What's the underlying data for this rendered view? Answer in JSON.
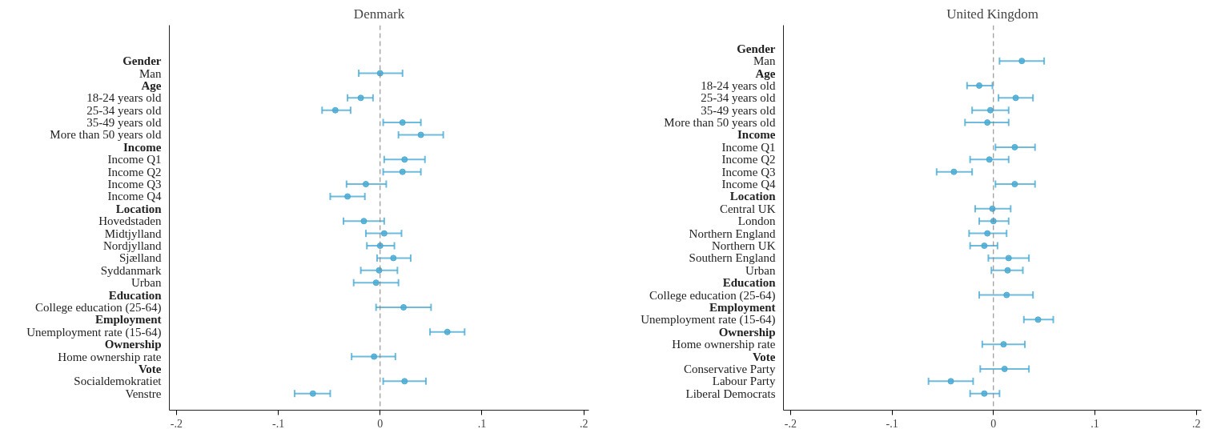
{
  "chart_data": [
    {
      "type": "scatter",
      "orientation": "horizontal",
      "title": "Denmark",
      "color": "#4aaad4",
      "marker": "circle",
      "grid": false,
      "categories": [
        "Gender",
        "Man",
        "Age",
        "18-24 years old",
        "25-34 years old",
        "35-49 years old",
        "More than 50 years old",
        "Income",
        "Income Q1",
        "Income Q2",
        "Income Q3",
        "Income Q4",
        "Location",
        "Hovedstaden",
        "Midtjylland",
        "Nordjylland",
        "Sjælland",
        "Syddanmark",
        "Urban",
        "Education",
        "College education (25-64)",
        "Employment",
        "Unemployment rate (15-64)",
        "Ownership",
        "Home ownership rate",
        "Vote",
        "Socialdemokratiet",
        "Venstre"
      ],
      "values": [
        null,
        0.0,
        null,
        -0.019,
        -0.044,
        0.022,
        0.04,
        null,
        0.024,
        0.022,
        -0.014,
        -0.032,
        null,
        -0.016,
        0.004,
        0.0,
        0.013,
        -0.001,
        -0.004,
        null,
        0.023,
        null,
        0.066,
        null,
        -0.006,
        null,
        0.024,
        -0.066
      ],
      "errors": [
        null,
        [
          -0.021,
          0.022
        ],
        null,
        [
          -0.032,
          -0.007
        ],
        [
          -0.057,
          -0.029
        ],
        [
          0.003,
          0.04
        ],
        [
          0.018,
          0.062
        ],
        null,
        [
          0.004,
          0.044
        ],
        [
          0.003,
          0.04
        ],
        [
          -0.033,
          0.006
        ],
        [
          -0.049,
          -0.015
        ],
        null,
        [
          -0.036,
          0.004
        ],
        [
          -0.014,
          0.021
        ],
        [
          -0.013,
          0.014
        ],
        [
          -0.003,
          0.03
        ],
        [
          -0.019,
          0.017
        ],
        [
          -0.026,
          0.018
        ],
        null,
        [
          -0.004,
          0.05
        ],
        null,
        [
          0.049,
          0.083
        ],
        null,
        [
          -0.028,
          0.015
        ],
        null,
        [
          0.003,
          0.045
        ],
        [
          -0.084,
          -0.049
        ]
      ],
      "xlim": [
        -0.207,
        0.205
      ],
      "xticks": [
        {
          "value": -0.2,
          "label": "-.2"
        },
        {
          "value": -0.1,
          "label": "-.1"
        },
        0,
        {
          "value": 0.1,
          "label": ".1"
        },
        {
          "value": 0.2,
          "label": ".2"
        }
      ],
      "ref_lines": [
        {
          "axis": "x",
          "value": 0,
          "color": "#808080",
          "line_style": "dashed"
        }
      ]
    },
    {
      "type": "scatter",
      "orientation": "horizontal",
      "title": "United Kingdom",
      "color": "#4aaad4",
      "marker": "circle",
      "grid": false,
      "categories": [
        "Gender",
        "Man",
        "Age",
        "18-24 years old",
        "25-34 years old",
        "35-49 years old",
        "More than 50 years old",
        "Income",
        "Income Q1",
        "Income Q2",
        "Income Q3",
        "Income Q4",
        "Location",
        "Central UK",
        "London",
        "Northern England",
        "Northern UK",
        "Southern England",
        "Urban",
        "Education",
        "College education (25-64)",
        "Employment",
        "Unemployment rate (15-64)",
        "Ownership",
        "Home ownership rate",
        "Vote",
        "Conservative Party",
        "Labour Party",
        "Liberal Democrats"
      ],
      "values": [
        null,
        0.028,
        null,
        -0.014,
        0.022,
        -0.003,
        -0.006,
        null,
        0.021,
        -0.004,
        -0.039,
        0.021,
        null,
        -0.001,
        0.0,
        -0.006,
        -0.009,
        0.015,
        0.014,
        null,
        0.013,
        null,
        0.044,
        null,
        0.01,
        null,
        0.011,
        -0.042,
        -0.009
      ],
      "errors": [
        null,
        [
          0.006,
          0.05
        ],
        null,
        [
          -0.026,
          -0.001
        ],
        [
          0.005,
          0.039
        ],
        [
          -0.021,
          0.015
        ],
        [
          -0.028,
          0.015
        ],
        null,
        [
          0.002,
          0.041
        ],
        [
          -0.023,
          0.015
        ],
        [
          -0.056,
          -0.021
        ],
        [
          0.002,
          0.041
        ],
        null,
        [
          -0.018,
          0.017
        ],
        [
          -0.014,
          0.015
        ],
        [
          -0.024,
          0.013
        ],
        [
          -0.023,
          0.004
        ],
        [
          -0.005,
          0.035
        ],
        [
          -0.002,
          0.029
        ],
        null,
        [
          -0.014,
          0.039
        ],
        null,
        [
          0.03,
          0.059
        ],
        null,
        [
          -0.011,
          0.031
        ],
        null,
        [
          -0.013,
          0.035
        ],
        [
          -0.064,
          -0.02
        ],
        [
          -0.023,
          0.006
        ]
      ],
      "xlim": [
        -0.207,
        0.205
      ],
      "xticks": [
        {
          "value": -0.2,
          "label": "-.2"
        },
        {
          "value": -0.1,
          "label": "-.1"
        },
        0,
        {
          "value": 0.1,
          "label": ".1"
        },
        {
          "value": 0.2,
          "label": ".2"
        }
      ],
      "ref_lines": [
        {
          "axis": "x",
          "value": 0,
          "color": "#808080",
          "line_style": "dashed"
        }
      ]
    }
  ]
}
